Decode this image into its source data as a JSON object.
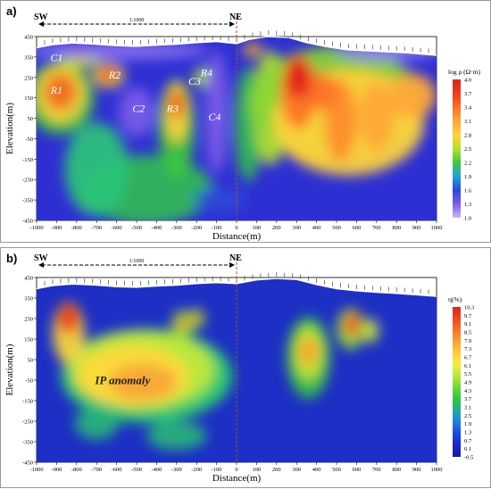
{
  "panels": [
    {
      "label": "a)",
      "sw": "SW",
      "ne": "NE",
      "scale": "1:1000",
      "ylabel": "Elevation(m)",
      "xlabel": "Distance(m)",
      "colorbar_title": "log ρ (Ω·m)",
      "colorbar_ticks": [
        "4.0",
        "3.7",
        "3.4",
        "3.1",
        "2.8",
        "2.5",
        "2.2",
        "1.9",
        "1.6",
        "1.3",
        "1.0"
      ],
      "labels": [
        "C1",
        "R1",
        "R2",
        "C2",
        "R3",
        "C3",
        "R4",
        "C4"
      ]
    },
    {
      "label": "b)",
      "sw": "SW",
      "ne": "NE",
      "scale": "1:1000",
      "ylabel": "Elevation(m)",
      "xlabel": "Distance(m)",
      "colorbar_title": "η(%)",
      "colorbar_ticks": [
        "10.3",
        "9.7",
        "9.1",
        "8.5",
        "7.9",
        "7.3",
        "6.7",
        "6.1",
        "5.5",
        "4.9",
        "4.3",
        "3.7",
        "3.1",
        "2.5",
        "1.9",
        "1.3",
        "0.7",
        "0.1",
        "-0.5"
      ],
      "labels": [
        "IP anomaly"
      ]
    }
  ],
  "chart_data": [
    {
      "type": "heatmap",
      "xlabel": "Distance(m)",
      "ylabel": "Elevation(m)",
      "xlim": [
        -1000,
        1000
      ],
      "ylim": [
        -450,
        450
      ],
      "xticks": [
        -1000,
        -900,
        -800,
        -700,
        -600,
        -500,
        -400,
        -300,
        -200,
        -100,
        0,
        100,
        200,
        300,
        400,
        500,
        600,
        700,
        800,
        900,
        1000
      ],
      "yticks": [
        450,
        350,
        250,
        150,
        50,
        -50,
        -150,
        -250,
        -350,
        -450
      ],
      "colorbar": {
        "title": "log ρ (Ω·m)",
        "range": [
          1.0,
          4.0
        ]
      },
      "annotations": [
        "C1",
        "R1",
        "R2",
        "C2",
        "R3",
        "C3",
        "R4",
        "C4"
      ]
    },
    {
      "type": "heatmap",
      "xlabel": "Distance(m)",
      "ylabel": "Elevation(m)",
      "xlim": [
        -1000,
        1000
      ],
      "ylim": [
        -450,
        450
      ],
      "xticks": [
        -1000,
        -900,
        -800,
        -700,
        -600,
        -500,
        -400,
        -300,
        -200,
        -100,
        0,
        100,
        200,
        300,
        400,
        500,
        600,
        700,
        800,
        900,
        1000
      ],
      "yticks": [
        450,
        350,
        250,
        150,
        50,
        -50,
        -150,
        -250,
        -350,
        -450
      ],
      "colorbar": {
        "title": "η(%)",
        "range": [
          -0.5,
          10.3
        ]
      },
      "annotations": [
        "IP anomaly"
      ]
    }
  ]
}
